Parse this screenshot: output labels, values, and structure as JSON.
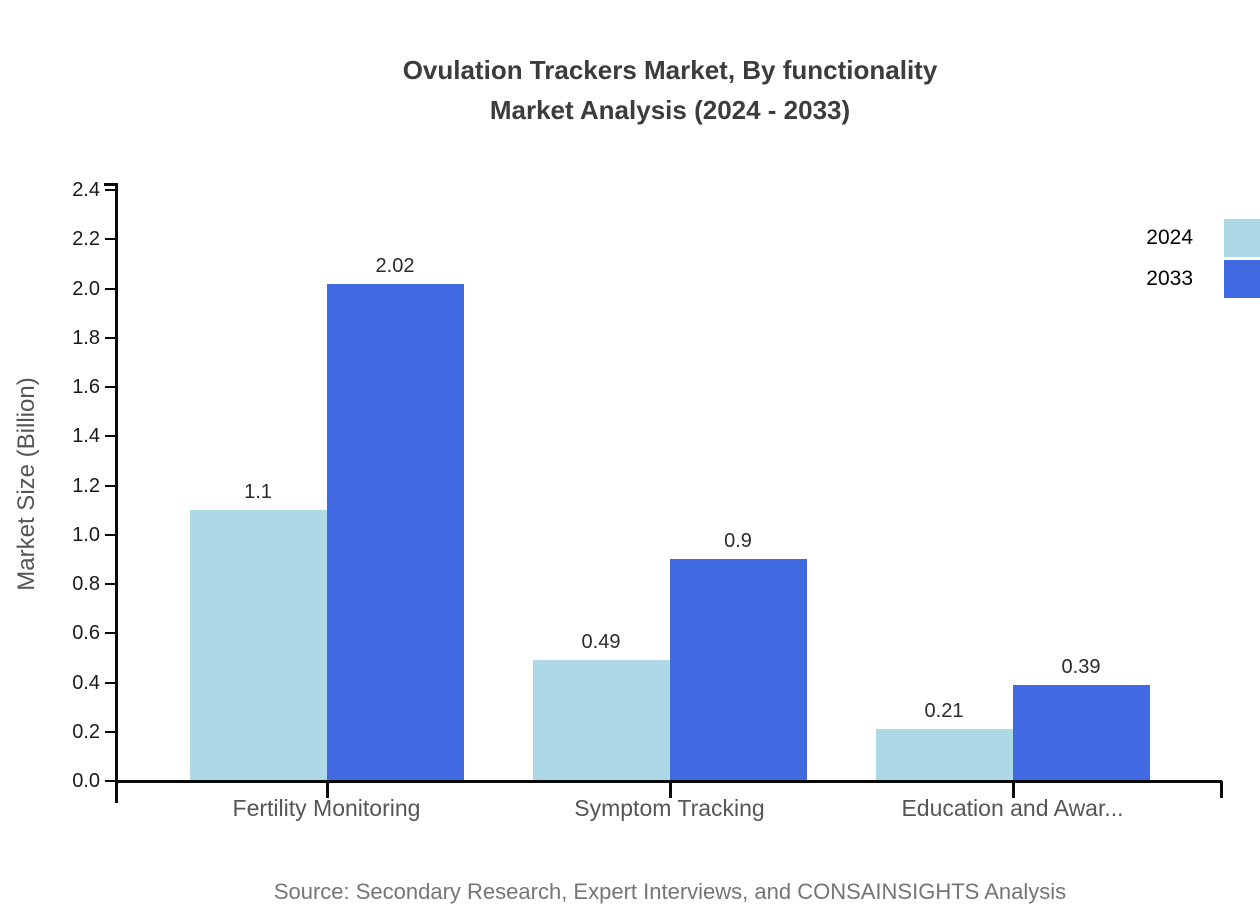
{
  "chart_data": {
    "type": "bar",
    "title_lines": [
      "Ovulation Trackers Market, By functionality",
      "Market Analysis (2024 - 2033)"
    ],
    "title": "Ovulation Trackers Market, By functionality Market Analysis (2024 - 2033)",
    "categories": [
      "Fertility Monitoring",
      "Symptom Tracking",
      "Education and Awar..."
    ],
    "series": [
      {
        "name": "2024",
        "color": "#ADD8E6",
        "values": [
          1.1,
          0.49,
          0.21
        ],
        "value_labels": [
          "1.1",
          "0.49",
          "0.21"
        ]
      },
      {
        "name": "2033",
        "color": "#4169E1",
        "values": [
          2.02,
          0.9,
          0.39
        ],
        "value_labels": [
          "2.02",
          "0.9",
          "0.39"
        ]
      }
    ],
    "xlabel": "",
    "ylabel": "Market Size (Billion)",
    "ylim": [
      0,
      2.4
    ],
    "ytick_step": 0.2,
    "ytick_labels": [
      "0.0",
      "0.2",
      "0.4",
      "0.6",
      "0.8",
      "1.0",
      "1.2",
      "1.4",
      "1.6",
      "1.8",
      "2.0",
      "2.2",
      "2.4"
    ],
    "grid": false,
    "legend_position": "top-right"
  },
  "source_note": "Source: Secondary Research, Expert Interviews, and CONSAINSIGHTS Analysis"
}
